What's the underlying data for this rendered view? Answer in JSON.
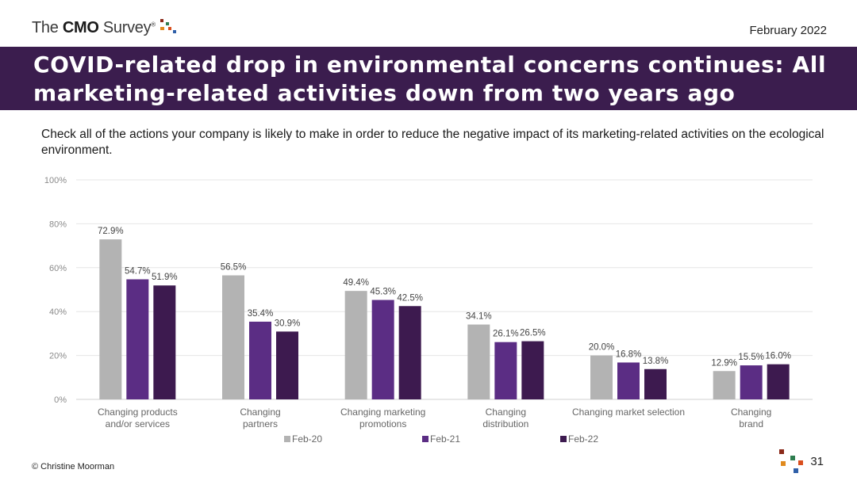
{
  "header": {
    "logo_prefix": "The ",
    "logo_bold": "CMO",
    "logo_suffix": " Survey",
    "logo_mark": "®",
    "date": "February 2022"
  },
  "banner": {
    "title": "COVID-related drop in environmental concerns continues: All marketing-related activities down from two years ago"
  },
  "question": "Check all of the actions your company is likely to make in order to reduce the negative impact of its marketing-related activities on the ecological environment.",
  "footer": {
    "copyright": "© Christine Moorman",
    "page_number": "31"
  },
  "colors": {
    "banner": "#3b1d4e",
    "series_feb20": "#b3b3b3",
    "series_feb21": "#5b2d84",
    "series_feb22": "#3d1a4f"
  },
  "chart_data": {
    "type": "bar",
    "categories": [
      [
        "Changing products",
        "and/or services"
      ],
      [
        "Changing",
        "partners"
      ],
      [
        "Changing marketing",
        "promotions"
      ],
      [
        "Changing",
        "distribution"
      ],
      [
        "Changing market selection"
      ],
      [
        "Changing",
        "brand"
      ]
    ],
    "series": [
      {
        "name": "Feb-20",
        "color": "#b3b3b3",
        "values": [
          72.9,
          56.5,
          49.4,
          34.1,
          20.0,
          12.9
        ],
        "labels": [
          "72.9%",
          "56.5%",
          "49.4%",
          "34.1%",
          "20.0%",
          "12.9%"
        ]
      },
      {
        "name": "Feb-21",
        "color": "#5b2d84",
        "values": [
          54.7,
          35.4,
          45.3,
          26.1,
          16.8,
          15.5
        ],
        "labels": [
          "54.7%",
          "35.4%",
          "45.3%",
          "26.1%",
          "16.8%",
          "15.5%"
        ]
      },
      {
        "name": "Feb-22",
        "color": "#3d1a4f",
        "values": [
          51.9,
          30.9,
          42.5,
          26.5,
          13.8,
          16.0
        ],
        "labels": [
          "51.9%",
          "30.9%",
          "42.5%",
          "26.5%",
          "13.8%",
          "16.0%"
        ]
      }
    ],
    "y_ticks": [
      "0%",
      "20%",
      "40%",
      "60%",
      "80%",
      "100%"
    ],
    "ylim": [
      0,
      100
    ],
    "grid": true,
    "legend_position": "bottom"
  }
}
